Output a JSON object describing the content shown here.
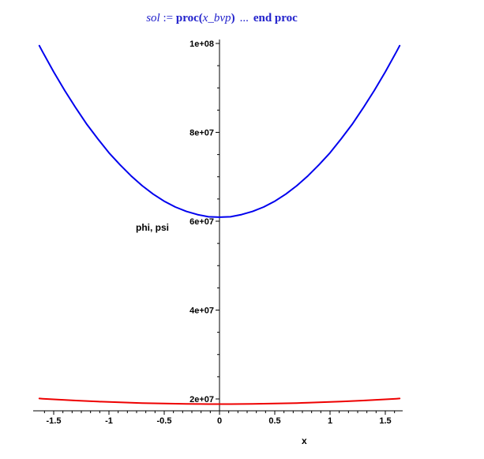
{
  "title": {
    "var": "sol",
    "assign": " := ",
    "proc_open": "proc(",
    "arg": "x_bvp",
    "close_paren": ")",
    "ellipsis": "...",
    "keyword_end": "end proc",
    "color": "#2222cc"
  },
  "axis_labels": {
    "y": "phi, psi",
    "x": "x"
  },
  "colors": {
    "phi_curve": "#0000ee",
    "psi_curve": "#ee0000",
    "axis": "#000000",
    "background": "#ffffff",
    "title_text": "#2222cc",
    "tick_text": "#000000"
  },
  "chart_data": {
    "type": "line",
    "title": "sol := proc(x_bvp) ... end proc",
    "xlabel": "x",
    "ylabel": "phi, psi",
    "grid": false,
    "legend": "none",
    "xlim": [
      -1.63,
      1.63
    ],
    "ylim": [
      17300000,
      101000000
    ],
    "y_unit": 1000000,
    "x_ticks": {
      "values": [
        -1.5,
        -1,
        -0.5,
        0,
        0.5,
        1,
        1.5
      ],
      "labels": [
        "-1.5",
        "-1",
        "-0.5",
        "0",
        "0.5",
        "1",
        "1.5"
      ],
      "minor_step": 0.0833333
    },
    "y_ticks": {
      "values_e6": [
        20,
        40,
        60,
        80,
        100
      ],
      "labels": [
        "2e+07",
        "4e+07",
        "6e+07",
        "8e+07",
        "1e+08"
      ],
      "minor_step_e6": 5
    },
    "x": [
      -1.63,
      -1.6,
      -1.5,
      -1.4,
      -1.3,
      -1.2,
      -1.1,
      -1.0,
      -0.9,
      -0.8,
      -0.7,
      -0.6,
      -0.5,
      -0.4,
      -0.3,
      -0.2,
      -0.1,
      0,
      0.1,
      0.2,
      0.3,
      0.4,
      0.5,
      0.6,
      0.7,
      0.8,
      0.9,
      1.0,
      1.1,
      1.2,
      1.3,
      1.4,
      1.5,
      1.6,
      1.63
    ],
    "series": [
      {
        "name": "phi",
        "color": "#0000ee",
        "values_e6": [
          99.5,
          98.1,
          93.6,
          89.4,
          85.5,
          81.8,
          78.5,
          75.4,
          72.7,
          70.2,
          68.0,
          66.1,
          64.5,
          63.2,
          62.2,
          61.5,
          61.0,
          60.9,
          61.0,
          61.5,
          62.2,
          63.2,
          64.5,
          66.1,
          68.0,
          70.2,
          72.7,
          75.4,
          78.5,
          81.8,
          85.5,
          89.4,
          93.6,
          98.1,
          99.5
        ]
      },
      {
        "name": "psi",
        "color": "#ee0000",
        "values_e6": [
          20.1,
          20.05,
          19.91,
          19.77,
          19.65,
          19.53,
          19.42,
          19.32,
          19.23,
          19.15,
          19.08,
          19.02,
          18.97,
          18.93,
          18.89,
          18.87,
          18.85,
          18.85,
          18.85,
          18.87,
          18.89,
          18.93,
          18.97,
          19.02,
          19.08,
          19.15,
          19.23,
          19.32,
          19.42,
          19.53,
          19.65,
          19.77,
          19.91,
          20.05,
          20.1
        ]
      }
    ]
  }
}
